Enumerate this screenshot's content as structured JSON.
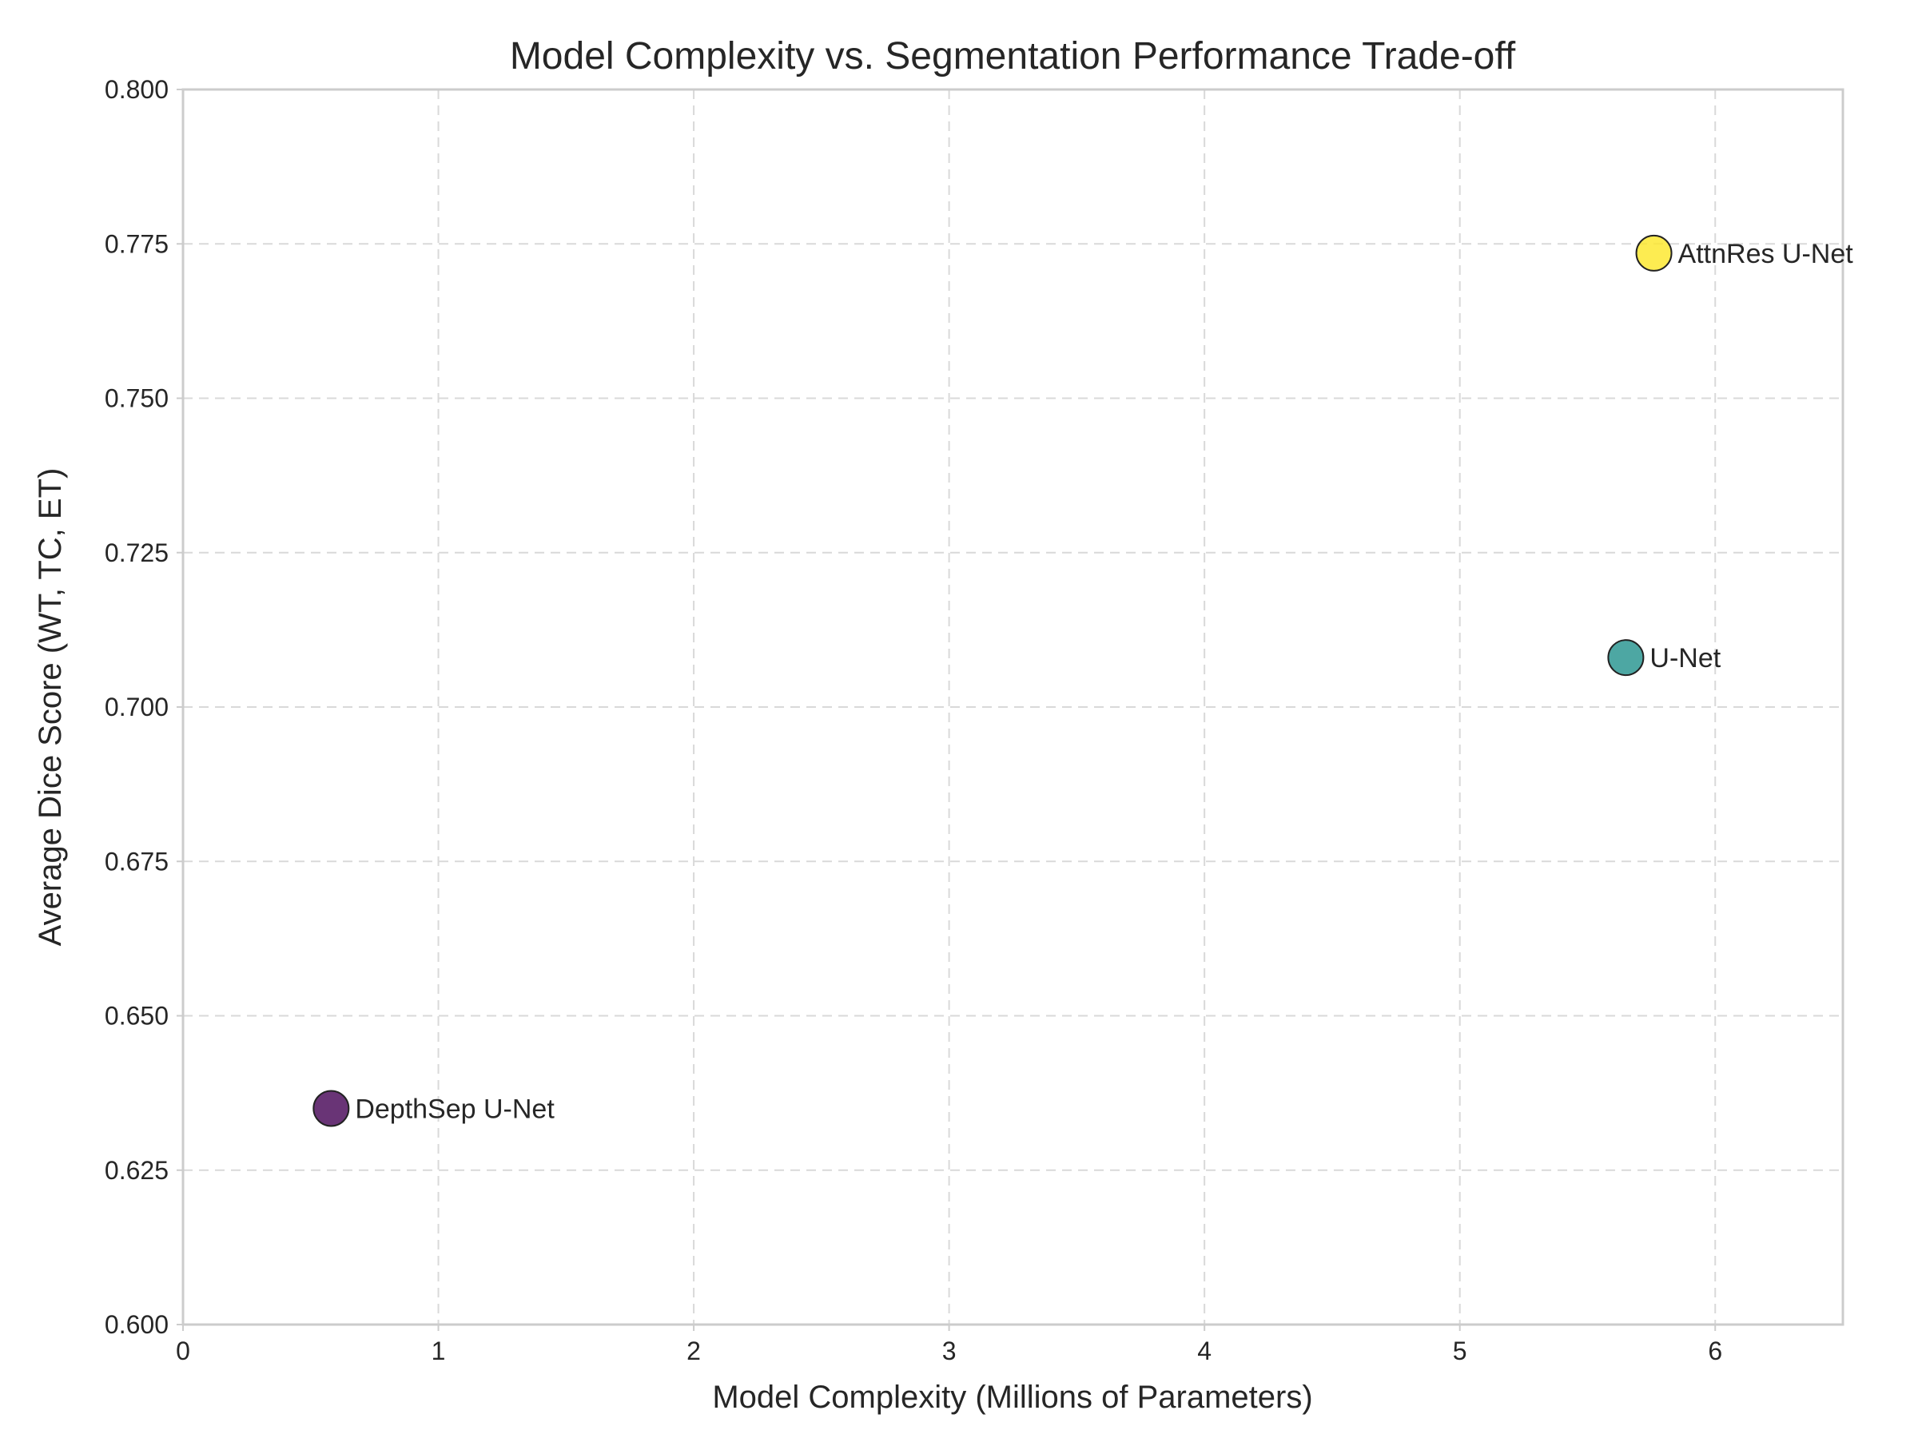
{
  "chart_data": {
    "type": "scatter",
    "title": "Model Complexity vs. Segmentation Performance Trade-off",
    "xlabel": "Model Complexity (Millions of Parameters)",
    "ylabel": "Average Dice Score (WT, TC, ET)",
    "xlim": [
      0,
      6.5
    ],
    "ylim": [
      0.6,
      0.8
    ],
    "x_ticks": [
      0,
      1,
      2,
      3,
      4,
      5,
      6
    ],
    "x_tick_labels": [
      "0",
      "1",
      "2",
      "3",
      "4",
      "5",
      "6"
    ],
    "y_ticks": [
      0.6,
      0.625,
      0.65,
      0.675,
      0.7,
      0.725,
      0.75,
      0.775,
      0.8
    ],
    "y_tick_labels": [
      "0.600",
      "0.625",
      "0.650",
      "0.675",
      "0.700",
      "0.725",
      "0.750",
      "0.775",
      "0.800"
    ],
    "grid": true,
    "points": [
      {
        "label": "DepthSep U-Net",
        "x": 0.58,
        "y": 0.635,
        "color": "#440154"
      },
      {
        "label": "U-Net",
        "x": 5.65,
        "y": 0.708,
        "color": "#21918c"
      },
      {
        "label": "AttnRes U-Net",
        "x": 5.76,
        "y": 0.7735,
        "color": "#fde725"
      }
    ]
  }
}
